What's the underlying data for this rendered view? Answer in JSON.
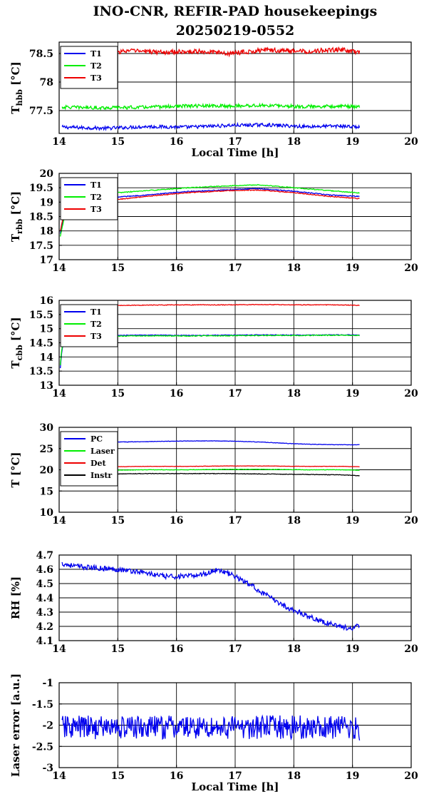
{
  "figure": {
    "title_line1": "INO-CNR, REFIR-PAD housekeepings",
    "title_line2": "20250219-0552"
  },
  "chart_data": [
    {
      "type": "line",
      "ylabel_main": "T",
      "ylabel_sub": "hbb",
      "ylabel_unit": " [°C]",
      "xlabel": "Local Time [h]",
      "xlim": [
        14,
        20
      ],
      "ylim": [
        77.1,
        78.7
      ],
      "yticks": [
        77.5,
        78,
        78.5
      ],
      "ytick_labels": [
        "77.5",
        "78",
        "78.5"
      ],
      "xticks": [
        14,
        15,
        16,
        17,
        18,
        19,
        20
      ],
      "xtick_labels": [
        "14",
        "15",
        "16",
        "17",
        "18",
        "19",
        "20"
      ],
      "grid": true,
      "legend": "top-left",
      "series": [
        {
          "name": "T1",
          "color": "#0000ee",
          "x": [
            14.05,
            14.8,
            15.5,
            16.2,
            16.9,
            17.5,
            18.2,
            18.8,
            19.12
          ],
          "y": [
            77.21,
            77.19,
            77.22,
            77.21,
            77.24,
            77.25,
            77.22,
            77.23,
            77.21
          ],
          "noise": 0.03
        },
        {
          "name": "T2",
          "color": "#00ee00",
          "x": [
            14.05,
            14.8,
            15.5,
            16.2,
            16.9,
            17.5,
            18.2,
            18.8,
            19.12
          ],
          "y": [
            77.56,
            77.55,
            77.56,
            77.58,
            77.58,
            77.59,
            77.57,
            77.58,
            77.56
          ],
          "noise": 0.03
        },
        {
          "name": "T3",
          "color": "#ee0000",
          "x": [
            14.8,
            15.2,
            15.8,
            16.4,
            16.9,
            17.5,
            18.2,
            18.8,
            19.12
          ],
          "y": [
            78.51,
            78.55,
            78.52,
            78.54,
            78.5,
            78.56,
            78.54,
            78.57,
            78.52
          ],
          "noise": 0.04
        }
      ]
    },
    {
      "type": "line",
      "ylabel_main": "T",
      "ylabel_sub": "rbb",
      "ylabel_unit": " [°C]",
      "xlabel": "",
      "xlim": [
        14,
        20
      ],
      "ylim": [
        17,
        20
      ],
      "yticks": [
        17,
        17.5,
        18,
        18.5,
        19,
        19.5,
        20
      ],
      "ytick_labels": [
        "17",
        "17.5",
        "18",
        "18.5",
        "19",
        "19.5",
        "20"
      ],
      "xticks": [
        14,
        15,
        16,
        17,
        18,
        19,
        20
      ],
      "xtick_labels": [
        "14",
        "15",
        "16",
        "17",
        "18",
        "19",
        "20"
      ],
      "grid": true,
      "legend": "top-left",
      "series": [
        {
          "name": "T1",
          "color": "#0000ee",
          "x": [
            14.02,
            14.05,
            14.08,
            14.8,
            15.5,
            16.2,
            16.9,
            17.4,
            18.0,
            18.6,
            19.12
          ],
          "y": [
            17.9,
            18.2,
            18.5,
            19.15,
            19.25,
            19.37,
            19.43,
            19.47,
            19.38,
            19.25,
            19.2
          ],
          "noise": 0.015
        },
        {
          "name": "T2",
          "color": "#00ee00",
          "x": [
            14.02,
            14.05,
            14.08,
            14.8,
            15.5,
            16.2,
            16.9,
            17.4,
            18.0,
            18.6,
            19.12
          ],
          "y": [
            17.8,
            18.1,
            18.4,
            19.3,
            19.4,
            19.5,
            19.57,
            19.6,
            19.5,
            19.4,
            19.32
          ],
          "noise": 0.015
        },
        {
          "name": "T3",
          "color": "#ee0000",
          "x": [
            14.02,
            14.05,
            14.08,
            14.8,
            15.5,
            16.2,
            16.9,
            17.4,
            18.0,
            18.6,
            19.12
          ],
          "y": [
            18.0,
            18.3,
            18.6,
            19.05,
            19.2,
            19.33,
            19.4,
            19.42,
            19.33,
            19.2,
            19.12
          ],
          "noise": 0.015
        }
      ]
    },
    {
      "type": "line",
      "ylabel_main": "T",
      "ylabel_sub": "cbb",
      "ylabel_unit": " [°C]",
      "xlabel": "",
      "xlim": [
        14,
        20
      ],
      "ylim": [
        13,
        16
      ],
      "yticks": [
        13,
        13.5,
        14,
        14.5,
        15,
        15.5,
        16
      ],
      "ytick_labels": [
        "13",
        "13.5",
        "14",
        "14.5",
        "15",
        "15.5",
        "16"
      ],
      "xticks": [
        14,
        15,
        16,
        17,
        18,
        19,
        20
      ],
      "xtick_labels": [
        "14",
        "15",
        "16",
        "17",
        "18",
        "19",
        "20"
      ],
      "grid": true,
      "legend": "top-left",
      "series": [
        {
          "name": "T1",
          "color": "#0000ee",
          "x": [
            14.02,
            14.04,
            14.07,
            14.8,
            15.5,
            16.2,
            16.9,
            17.5,
            18.2,
            18.8,
            19.12
          ],
          "y": [
            13.6,
            14.1,
            14.5,
            14.76,
            14.77,
            14.76,
            14.77,
            14.78,
            14.77,
            14.78,
            14.77
          ],
          "noise": 0.012
        },
        {
          "name": "T2",
          "color": "#00ee00",
          "x": [
            14.02,
            14.04,
            14.07,
            14.8,
            15.5,
            16.2,
            16.9,
            17.5,
            18.2,
            18.8,
            19.12
          ],
          "y": [
            13.7,
            14.2,
            14.55,
            14.73,
            14.75,
            14.74,
            14.75,
            14.76,
            14.76,
            14.77,
            14.76
          ],
          "noise": 0.015
        },
        {
          "name": "T3",
          "color": "#ee0000",
          "x": [
            14.8,
            15.5,
            16.2,
            16.9,
            17.5,
            18.2,
            18.8,
            19.12
          ],
          "y": [
            15.82,
            15.83,
            15.84,
            15.84,
            15.85,
            15.84,
            15.84,
            15.82
          ],
          "noise": 0.012
        }
      ]
    },
    {
      "type": "line",
      "ylabel_main": "T [°C]",
      "ylabel_sub": "",
      "ylabel_unit": "",
      "xlabel": "",
      "xlim": [
        14,
        20
      ],
      "ylim": [
        10,
        30
      ],
      "yticks": [
        10,
        15,
        20,
        25,
        30
      ],
      "ytick_labels": [
        "10",
        "15",
        "20",
        "25",
        "30"
      ],
      "xticks": [
        14,
        15,
        16,
        17,
        18,
        19,
        20
      ],
      "xtick_labels": [
        "14",
        "15",
        "16",
        "17",
        "18",
        "19",
        "20"
      ],
      "grid": true,
      "legend": "top-left",
      "series": [
        {
          "name": "PC",
          "color": "#0000ee",
          "x": [
            14.8,
            15.3,
            15.8,
            16.3,
            16.7,
            17.1,
            17.5,
            17.9,
            18.3,
            18.7,
            19.12
          ],
          "y": [
            26.5,
            26.6,
            26.7,
            26.8,
            26.8,
            26.7,
            26.5,
            26.2,
            26.0,
            25.9,
            25.9
          ],
          "noise": 0.05
        },
        {
          "name": "Laser",
          "color": "#00ee00",
          "x": [
            14.8,
            15.5,
            16.2,
            16.9,
            17.5,
            18.2,
            18.8,
            19.12
          ],
          "y": [
            19.9,
            20.0,
            20.0,
            20.1,
            20.1,
            20.0,
            20.0,
            19.9
          ],
          "noise": 0.05
        },
        {
          "name": "Det",
          "color": "#ee0000",
          "x": [
            14.8,
            15.5,
            16.2,
            16.9,
            17.5,
            18.2,
            18.8,
            19.12
          ],
          "y": [
            20.7,
            20.8,
            20.8,
            20.9,
            20.9,
            20.8,
            20.8,
            20.7
          ],
          "noise": 0.04
        },
        {
          "name": "Instr",
          "color": "#000000",
          "x": [
            14.8,
            15.5,
            16.2,
            16.9,
            17.5,
            18.2,
            18.8,
            19.12
          ],
          "y": [
            19.0,
            19.1,
            19.1,
            19.1,
            19.0,
            18.9,
            18.8,
            18.6
          ],
          "noise": 0.06
        }
      ]
    },
    {
      "type": "line",
      "ylabel_main": "RH [%]",
      "ylabel_sub": "",
      "ylabel_unit": "",
      "xlabel": "",
      "xlim": [
        14,
        20
      ],
      "ylim": [
        4.1,
        4.7
      ],
      "yticks": [
        4.1,
        4.2,
        4.3,
        4.4,
        4.5,
        4.6,
        4.7
      ],
      "ytick_labels": [
        "4.1",
        "4.2",
        "4.3",
        "4.4",
        "4.5",
        "4.6",
        "4.7"
      ],
      "xticks": [
        14,
        15,
        16,
        17,
        18,
        19,
        20
      ],
      "xtick_labels": [
        "14",
        "15",
        "16",
        "17",
        "18",
        "19",
        "20"
      ],
      "grid": true,
      "legend": "",
      "series": [
        {
          "name": "",
          "color": "#0000ee",
          "x": [
            14.05,
            14.3,
            14.6,
            15.0,
            15.4,
            15.8,
            16.2,
            16.5,
            16.7,
            17.0,
            17.3,
            17.6,
            17.9,
            18.2,
            18.5,
            18.8,
            19.0,
            19.12
          ],
          "y": [
            4.64,
            4.62,
            4.61,
            4.6,
            4.58,
            4.55,
            4.55,
            4.57,
            4.6,
            4.55,
            4.48,
            4.4,
            4.33,
            4.28,
            4.23,
            4.2,
            4.18,
            4.21
          ],
          "noise": 0.018
        }
      ]
    },
    {
      "type": "line",
      "ylabel_main": "Laser error [a.u.]",
      "ylabel_sub": "",
      "ylabel_unit": "",
      "xlabel": "Local Time [h]",
      "xlim": [
        14,
        20
      ],
      "ylim": [
        -3,
        -1
      ],
      "yticks": [
        -3,
        -2.5,
        -2,
        -1.5,
        -1
      ],
      "ytick_labels": [
        "-3",
        "-2.5",
        "-2",
        "-1.5",
        "-1"
      ],
      "xticks": [
        14,
        15,
        16,
        17,
        18,
        19,
        20
      ],
      "xtick_labels": [
        "14",
        "15",
        "16",
        "17",
        "18",
        "19",
        "20"
      ],
      "grid": true,
      "legend": "",
      "series": [
        {
          "name": "",
          "color": "#0000ee",
          "x": [
            14.05,
            14.5,
            15.0,
            15.5,
            16.0,
            16.5,
            17.0,
            17.5,
            18.0,
            18.5,
            19.0,
            19.12
          ],
          "y": [
            -2.05,
            -2.05,
            -2.05,
            -2.05,
            -2.05,
            -2.05,
            -2.05,
            -2.05,
            -2.05,
            -2.05,
            -2.05,
            -2.1
          ],
          "noise": 0.28
        }
      ]
    }
  ]
}
